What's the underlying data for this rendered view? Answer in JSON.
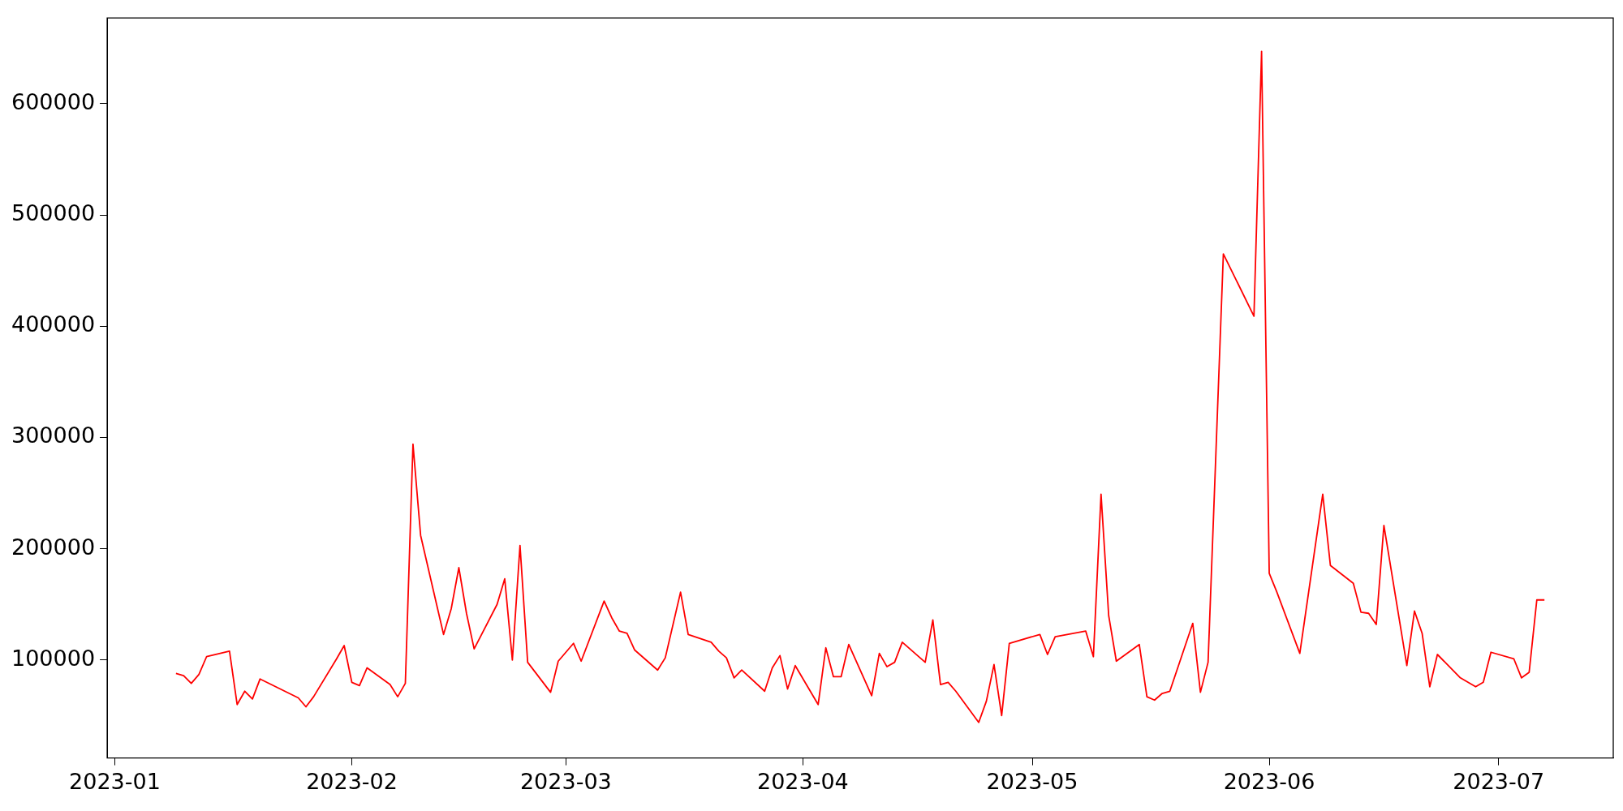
{
  "chart_data": {
    "type": "line",
    "color": "#ff0000",
    "x": [
      "2023-01-09",
      "2023-01-10",
      "2023-01-11",
      "2023-01-12",
      "2023-01-13",
      "2023-01-16",
      "2023-01-17",
      "2023-01-18",
      "2023-01-19",
      "2023-01-20",
      "2023-01-25",
      "2023-01-26",
      "2023-01-27",
      "2023-01-30",
      "2023-01-31",
      "2023-02-01",
      "2023-02-02",
      "2023-02-03",
      "2023-02-06",
      "2023-02-07",
      "2023-02-08",
      "2023-02-09",
      "2023-02-10",
      "2023-02-13",
      "2023-02-14",
      "2023-02-15",
      "2023-02-16",
      "2023-02-17",
      "2023-02-20",
      "2023-02-21",
      "2023-02-22",
      "2023-02-23",
      "2023-02-24",
      "2023-02-27",
      "2023-02-28",
      "2023-03-02",
      "2023-03-03",
      "2023-03-06",
      "2023-03-07",
      "2023-03-08",
      "2023-03-09",
      "2023-03-10",
      "2023-03-13",
      "2023-03-14",
      "2023-03-16",
      "2023-03-17",
      "2023-03-20",
      "2023-03-21",
      "2023-03-22",
      "2023-03-23",
      "2023-03-24",
      "2023-03-27",
      "2023-03-28",
      "2023-03-29",
      "2023-03-30",
      "2023-03-31",
      "2023-04-03",
      "2023-04-04",
      "2023-04-05",
      "2023-04-06",
      "2023-04-07",
      "2023-04-10",
      "2023-04-11",
      "2023-04-12",
      "2023-04-13",
      "2023-04-14",
      "2023-04-17",
      "2023-04-18",
      "2023-04-19",
      "2023-04-20",
      "2023-04-21",
      "2023-04-24",
      "2023-04-25",
      "2023-04-26",
      "2023-04-27",
      "2023-04-28",
      "2023-05-02",
      "2023-05-03",
      "2023-05-04",
      "2023-05-08",
      "2023-05-09",
      "2023-05-10",
      "2023-05-11",
      "2023-05-12",
      "2023-05-15",
      "2023-05-16",
      "2023-05-17",
      "2023-05-18",
      "2023-05-19",
      "2023-05-22",
      "2023-05-23",
      "2023-05-24",
      "2023-05-26",
      "2023-05-30",
      "2023-05-31",
      "2023-06-01",
      "2023-06-02",
      "2023-06-05",
      "2023-06-08",
      "2023-06-09",
      "2023-06-12",
      "2023-06-13",
      "2023-06-14",
      "2023-06-15",
      "2023-06-16",
      "2023-06-19",
      "2023-06-20",
      "2023-06-21",
      "2023-06-22",
      "2023-06-23",
      "2023-06-26",
      "2023-06-27",
      "2023-06-28",
      "2023-06-29",
      "2023-06-30",
      "2023-07-03",
      "2023-07-04",
      "2023-07-05",
      "2023-07-06",
      "2023-07-07"
    ],
    "values": [
      88000,
      86000,
      79000,
      87000,
      103000,
      108000,
      60000,
      72000,
      65000,
      83000,
      66000,
      58000,
      67000,
      101000,
      113000,
      80000,
      77000,
      93000,
      78000,
      67000,
      79000,
      294000,
      212000,
      123000,
      146000,
      183000,
      142000,
      110000,
      150000,
      173000,
      100000,
      203000,
      98000,
      71000,
      99000,
      115000,
      99000,
      153000,
      138000,
      126000,
      124000,
      109000,
      91000,
      102000,
      161000,
      123000,
      116000,
      108000,
      102000,
      84000,
      91000,
      72000,
      93000,
      104000,
      74000,
      95000,
      60000,
      111000,
      85000,
      85000,
      114000,
      68000,
      106000,
      94000,
      98000,
      116000,
      98000,
      136000,
      78000,
      80000,
      72000,
      44000,
      63000,
      96000,
      50000,
      115000,
      123000,
      105000,
      121000,
      126000,
      103000,
      249000,
      140000,
      99000,
      114000,
      67000,
      64000,
      70000,
      72000,
      133000,
      71000,
      98000,
      465000,
      409000,
      647000,
      178000,
      161000,
      106000,
      249000,
      185000,
      169000,
      143000,
      142000,
      132000,
      221000,
      95000,
      144000,
      124000,
      76000,
      105000,
      84000,
      80000,
      76000,
      80000,
      107000,
      101000,
      84000,
      89000,
      154000,
      154000
    ],
    "xlim": [
      "2022-12-31",
      "2023-07-16"
    ],
    "xticks": [
      "2023-01",
      "2023-02",
      "2023-03",
      "2023-04",
      "2023-05",
      "2023-06",
      "2023-07"
    ],
    "ylim": [
      12000,
      677000
    ],
    "yticks": [
      100000,
      200000,
      300000,
      400000,
      500000,
      600000
    ]
  }
}
